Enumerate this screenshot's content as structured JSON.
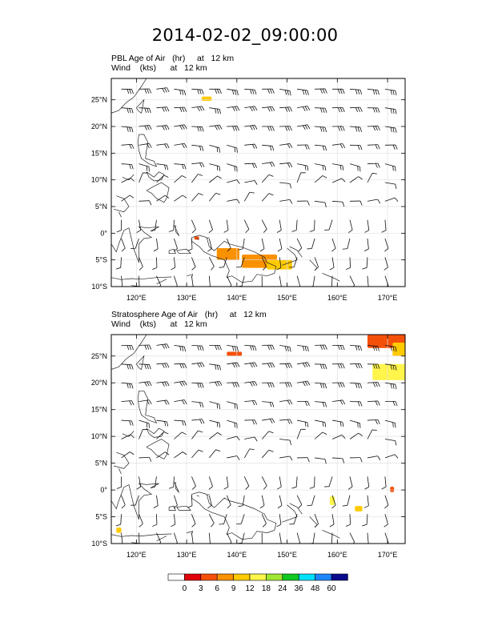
{
  "figure": {
    "title": "2014-02-02_09:00:00"
  },
  "chart_data": [
    {
      "type": "heatmap",
      "title": "PBL Age of Air   (hr)     at   12 km",
      "subtitle": "Wind    (kts)      at   12 km",
      "xlim": [
        115,
        173.5
      ],
      "ylim": [
        -10,
        29
      ],
      "xticks": [
        120,
        130,
        140,
        150,
        160,
        170
      ],
      "xtick_labels": [
        "120°E",
        "130°E",
        "140°E",
        "150°E",
        "160°E",
        "170°E"
      ],
      "yticks": [
        -10,
        -5,
        0,
        5,
        10,
        15,
        20,
        25
      ],
      "ytick_labels": [
        "10°S",
        "5°S",
        "0°",
        "5°N",
        "10°N",
        "15°N",
        "20°N",
        "25°N"
      ],
      "grid": true,
      "overlay": "wind barbs",
      "shaded_regions": [
        {
          "lon": [
            133.0,
            135.0
          ],
          "lat": [
            24.8,
            25.6
          ],
          "value": 9
        },
        {
          "lon": [
            131.5,
            132.5
          ],
          "lat": [
            -1.2,
            -0.6
          ],
          "value": 3
        },
        {
          "lon": [
            136.0,
            140.5
          ],
          "lat": [
            -5.0,
            -2.8
          ],
          "value": 6
        },
        {
          "lon": [
            141.0,
            148.0
          ],
          "lat": [
            -6.5,
            -4.0
          ],
          "value": 6
        },
        {
          "lon": [
            146.0,
            151.0
          ],
          "lat": [
            -6.8,
            -5.0
          ],
          "value": 9
        }
      ]
    },
    {
      "type": "heatmap",
      "title": "Stratosphere Age of Air   (hr)     at   12 km",
      "subtitle": "Wind    (kts)      at   12 km",
      "xlim": [
        115,
        173.5
      ],
      "ylim": [
        -10,
        29
      ],
      "xticks": [
        120,
        130,
        140,
        150,
        160,
        170
      ],
      "xtick_labels": [
        "120°E",
        "130°E",
        "140°E",
        "150°E",
        "160°E",
        "170°E"
      ],
      "yticks": [
        -10,
        -5,
        0,
        5,
        10,
        15,
        20,
        25
      ],
      "ytick_labels": [
        "10°S",
        "5°S",
        "0°",
        "5°N",
        "10°N",
        "15°N",
        "20°N",
        "25°N"
      ],
      "grid": true,
      "overlay": "wind barbs",
      "shaded_regions": [
        {
          "lon": [
            166.0,
            173.5
          ],
          "lat": [
            26.5,
            29.0
          ],
          "value": 3
        },
        {
          "lon": [
            171.0,
            173.5
          ],
          "lat": [
            25.0,
            27.5
          ],
          "value": 9
        },
        {
          "lon": [
            167.0,
            173.5
          ],
          "lat": [
            20.5,
            23.5
          ],
          "value": 12
        },
        {
          "lon": [
            138.0,
            141.0
          ],
          "lat": [
            25.0,
            25.8
          ],
          "value": 3
        },
        {
          "lon": [
            158.5,
            159.5
          ],
          "lat": [
            -2.8,
            -1.2
          ],
          "value": 15
        },
        {
          "lon": [
            163.5,
            165.0
          ],
          "lat": [
            -4.0,
            -3.0
          ],
          "value": 9
        },
        {
          "lon": [
            170.5,
            171.3
          ],
          "lat": [
            -0.4,
            0.6
          ],
          "value": 3
        },
        {
          "lon": [
            116.0,
            117.0
          ],
          "lat": [
            -8.0,
            -7.0
          ],
          "value": 9
        }
      ]
    }
  ],
  "colorbar": {
    "labels": [
      "0",
      "3",
      "6",
      "9",
      "12",
      "18",
      "24",
      "36",
      "48",
      "60"
    ],
    "colors": [
      "#ffffff",
      "#e1000d",
      "#f5500a",
      "#fa9100",
      "#ffca00",
      "#fff54b",
      "#a0e632",
      "#10c820",
      "#00e1ff",
      "#1e87ff",
      "#0a0a8c"
    ]
  }
}
